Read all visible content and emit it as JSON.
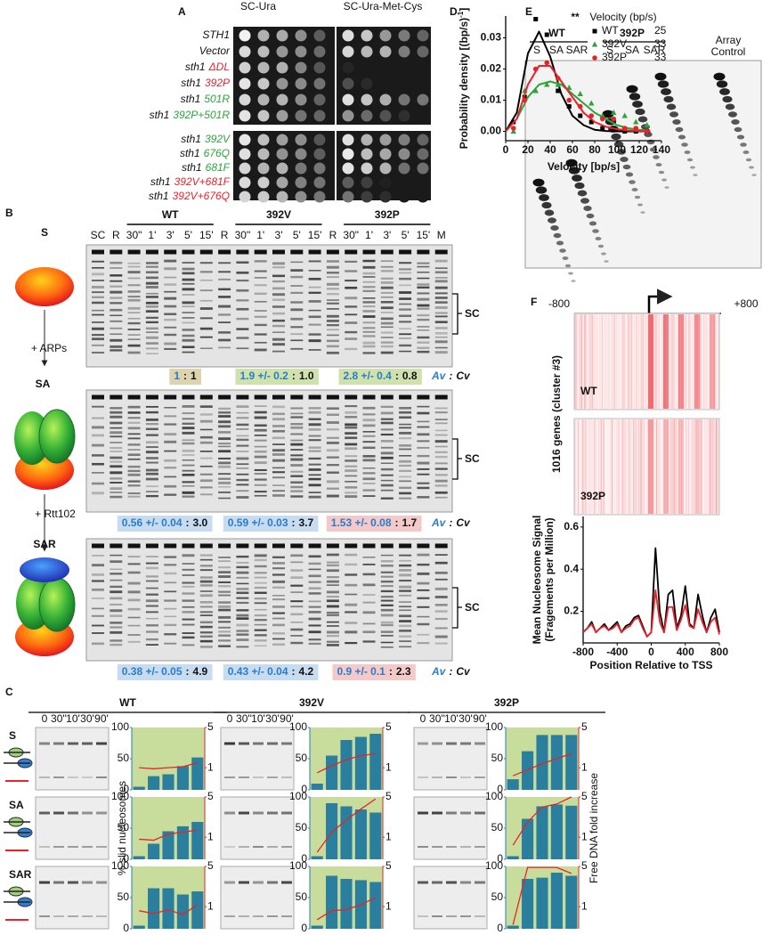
{
  "panel_a": {
    "label": "A",
    "columns": [
      "SC-Ura",
      "SC-Ura-Met-Cys"
    ],
    "rows": [
      {
        "gene": "STH1"
      },
      {
        "gene": "Vector"
      },
      {
        "gene": "sth1",
        "allele": "ΔDL",
        "color": "#e8212b"
      },
      {
        "gene": "sth1",
        "allele": "392P",
        "color": "#e8212b"
      },
      {
        "gene": "sth1",
        "allele": "501R",
        "color": "#2aa538"
      },
      {
        "gene": "sth1",
        "allele": "392P+501R",
        "color": "#2aa538"
      },
      {
        "gene": "sth1",
        "allele": "392V",
        "color": "#2aa538"
      },
      {
        "gene": "sth1",
        "allele": "676Q",
        "color": "#2aa538"
      },
      {
        "gene": "sth1",
        "allele": "681F",
        "color": "#2aa538"
      },
      {
        "gene": "sth1",
        "allele": "392V+681F",
        "color": "#e8212b"
      },
      {
        "gene": "sth1",
        "allele": "392V+676Q",
        "color": "#e8212b"
      }
    ]
  },
  "panel_b": {
    "label": "B",
    "groups": [
      {
        "name": "WT",
        "color": "#000000"
      },
      {
        "name": "392V",
        "color": "#2aa538"
      },
      {
        "name": "392P",
        "color": "#e8212b"
      }
    ],
    "lanes": [
      "SC",
      "R",
      "30\"",
      "1'",
      "3'",
      "5'",
      "15'",
      "R",
      "30\"",
      "1'",
      "3'",
      "5'",
      "15'",
      "R",
      "30\"",
      "1'",
      "3'",
      "5'",
      "15'",
      "M"
    ],
    "stages": [
      "S",
      "SA",
      "SAR"
    ],
    "steps": [
      "+ ARPs",
      "+ Rtt102"
    ],
    "bracket": "SC",
    "ratio_label": {
      "av": "Av",
      "sep": ":",
      "cv": "Cv"
    },
    "ratios": [
      [
        {
          "av": "1",
          "cv": "1"
        },
        {
          "av": "1.9 +/- 0.2",
          "cv": "1.0"
        },
        {
          "av": "2.8 +/- 0.4",
          "cv": "0.8"
        }
      ],
      [
        {
          "av": "0.56 +/- 0.04",
          "cv": "3.0"
        },
        {
          "av": "0.59 +/- 0.03",
          "cv": "3.7"
        },
        {
          "av": "1.53 +/- 0.08",
          "cv": "1.7"
        }
      ],
      [
        {
          "av": "0.38 +/- 0.05",
          "cv": "4.9"
        },
        {
          "av": "0.43 +/- 0.04",
          "cv": "4.2"
        },
        {
          "av": "0.9 +/- 0.1",
          "cv": "2.3"
        }
      ]
    ]
  },
  "panel_c": {
    "label": "C",
    "groups": [
      {
        "name": "WT",
        "color": "#000000"
      },
      {
        "name": "392V",
        "color": "#2aa538"
      },
      {
        "name": "392P",
        "color": "#e8212b"
      }
    ],
    "lanes": [
      "0",
      "30''",
      "10'",
      "30'",
      "90'"
    ],
    "rows": [
      "S",
      "SA",
      "SAR"
    ],
    "ylabel": "% slid nucleosomes",
    "y2label": "Free DNA fold increase"
  },
  "panel_d": {
    "label": "D"
  },
  "panel_e": {
    "label": "E",
    "significance": "**",
    "groups": [
      {
        "name": "WT",
        "color": "#000000"
      },
      {
        "name": "392P",
        "color": "#e8212b"
      }
    ],
    "lanes": [
      "S",
      "SA",
      "SAR"
    ],
    "control": [
      "Array",
      "Control"
    ]
  },
  "panel_f": {
    "label": "F",
    "left": "-800",
    "right": "+800",
    "genes": "1016 genes (cluster #3)",
    "heatmaps": [
      "WT",
      "392P"
    ]
  },
  "chart_data": [
    {
      "type": "scatter",
      "x": [
        7,
        17,
        27,
        37,
        47,
        57,
        67,
        77,
        87,
        97,
        107,
        117,
        127
      ],
      "fit_x": [
        0,
        10,
        20,
        30,
        40,
        50,
        60,
        70,
        80,
        90,
        100,
        110,
        120,
        130
      ],
      "xlim": [
        0,
        140
      ],
      "ylim": [
        -0.003,
        0.037
      ],
      "xticks": [
        0,
        20,
        40,
        60,
        80,
        100,
        120,
        140
      ],
      "yticks": [
        {
          "value": 0,
          "label": "0.00"
        },
        0.01,
        0.02,
        0.03
      ],
      "xlabel": "Velocity [bp/s]",
      "ylabel": {
        "text": "Probability density [(bp/s)",
        "sup": "-1",
        "end": "]"
      },
      "legend_title": "Velocity (bp/s)",
      "legend": "upper right",
      "series": [
        {
          "name": "WT",
          "mean": 25,
          "color": "#000000",
          "marker": "square",
          "values": [
            0.003,
            0.011,
            0.036,
            0.031,
            0.013,
            0.008,
            0.005,
            0.003,
            0.001,
            0.001,
            0.0,
            0.0,
            0.0
          ],
          "fit": [
            0,
            0.006,
            0.025,
            0.032,
            0.024,
            0.012,
            0.005,
            0.002,
            0.0005,
            0.0001,
            0,
            0,
            0,
            0
          ]
        },
        {
          "name": "392V",
          "mean": 33,
          "color": "#2aa538",
          "marker": "triangle",
          "values": [
            0.0,
            0.013,
            0.013,
            0.015,
            0.015,
            0.014,
            0.012,
            0.009,
            0.005,
            0.006,
            0.005,
            0.003,
            0.002
          ],
          "fit": [
            0,
            0.004,
            0.011,
            0.015,
            0.016,
            0.015,
            0.012,
            0.009,
            0.006,
            0.004,
            0.002,
            0.001,
            0.0005,
            0.0002
          ]
        },
        {
          "name": "392P",
          "mean": 33,
          "color": "#e8212b",
          "marker": "circle",
          "values": [
            0.001,
            0.01,
            0.02,
            0.022,
            0.017,
            0.01,
            0.008,
            0.005,
            0.004,
            0.004,
            0.001,
            0.001,
            0.0
          ],
          "fit": [
            0,
            0.004,
            0.015,
            0.021,
            0.021,
            0.016,
            0.011,
            0.006,
            0.003,
            0.0015,
            0.0007,
            0.0003,
            0.0001,
            0
          ]
        }
      ]
    },
    {
      "type": "line",
      "x": [
        -800,
        -750,
        -700,
        -650,
        -600,
        -550,
        -500,
        -450,
        -400,
        -350,
        -300,
        -250,
        -200,
        -150,
        -100,
        -50,
        0,
        50,
        100,
        150,
        200,
        250,
        300,
        350,
        400,
        450,
        500,
        550,
        600,
        650,
        700,
        750,
        800
      ],
      "xlim": [
        -800,
        800
      ],
      "ylim": [
        0.05,
        0.65
      ],
      "xticks": [
        -800,
        -400,
        0,
        400,
        800
      ],
      "yticks": [
        0.2,
        0.4,
        0.6
      ],
      "xlabel": "Position Relative to TSS",
      "ylabel": [
        "Mean Nucleosome Signal",
        "(Fragements per Million)"
      ],
      "series": [
        {
          "color": "#000000",
          "values": [
            0.1,
            0.12,
            0.15,
            0.1,
            0.12,
            0.14,
            0.11,
            0.13,
            0.15,
            0.1,
            0.13,
            0.14,
            0.17,
            0.18,
            0.13,
            0.08,
            0.1,
            0.5,
            0.2,
            0.1,
            0.28,
            0.3,
            0.12,
            0.18,
            0.32,
            0.14,
            0.12,
            0.28,
            0.18,
            0.1,
            0.17,
            0.21,
            0.1
          ]
        },
        {
          "color": "#e8212b",
          "values": [
            0.1,
            0.12,
            0.14,
            0.1,
            0.12,
            0.13,
            0.11,
            0.12,
            0.14,
            0.1,
            0.12,
            0.13,
            0.16,
            0.17,
            0.12,
            0.08,
            0.1,
            0.3,
            0.15,
            0.1,
            0.22,
            0.22,
            0.11,
            0.16,
            0.23,
            0.13,
            0.12,
            0.21,
            0.15,
            0.1,
            0.15,
            0.17,
            0.09
          ]
        }
      ]
    },
    {
      "type": "bar",
      "ylim": [
        0,
        100
      ],
      "yticks": [
        0,
        50,
        100
      ],
      "y2lim": [
        -1.2,
        5
      ],
      "y2ticks": [
        1,
        5
      ],
      "series": [
        {
          "color": "#2a7f9e",
          "values": [
            5,
            22,
            25,
            38,
            52
          ]
        },
        {
          "color": "#e8212b",
          "axis": "y2",
          "values": [
            1,
            0.9,
            1,
            1.1,
            1.5
          ]
        }
      ]
    },
    {
      "type": "bar",
      "ylim": [
        0,
        100
      ],
      "yticks": [
        0,
        50,
        100
      ],
      "y2lim": [
        -1.2,
        5
      ],
      "y2ticks": [
        1,
        5
      ],
      "series": [
        {
          "color": "#2a7f9e",
          "values": [
            10,
            55,
            80,
            85,
            90
          ]
        },
        {
          "color": "#e8212b",
          "axis": "y2",
          "values": [
            0.5,
            1.2,
            1.8,
            2.2,
            2.4
          ]
        }
      ]
    },
    {
      "type": "bar",
      "ylim": [
        0,
        100
      ],
      "yticks": [
        0,
        50,
        100
      ],
      "y2lim": [
        -1.2,
        5
      ],
      "y2ticks": [
        1,
        5
      ],
      "series": [
        {
          "color": "#2a7f9e",
          "values": [
            17,
            62,
            88,
            88,
            88
          ]
        },
        {
          "color": "#e8212b",
          "axis": "y2",
          "values": [
            0.2,
            0.8,
            1.4,
            1.9,
            2.4
          ]
        }
      ]
    },
    {
      "type": "bar",
      "ylim": [
        0,
        100
      ],
      "yticks": [
        0,
        50,
        100
      ],
      "y2lim": [
        -1.2,
        5
      ],
      "y2ticks": [
        1,
        5
      ],
      "series": [
        {
          "color": "#2a7f9e",
          "values": [
            5,
            25,
            45,
            53,
            60
          ]
        },
        {
          "color": "#e8212b",
          "axis": "y2",
          "values": [
            0.8,
            0.7,
            1.3,
            1.5,
            1.7
          ]
        }
      ]
    },
    {
      "type": "bar",
      "ylim": [
        0,
        100
      ],
      "yticks": [
        0,
        50,
        100
      ],
      "y2lim": [
        -1.2,
        5
      ],
      "y2ticks": [
        1,
        5
      ],
      "series": [
        {
          "color": "#2a7f9e",
          "values": [
            5,
            90,
            85,
            80,
            75
          ]
        },
        {
          "color": "#e8212b",
          "axis": "y2",
          "values": [
            -0.5,
            1.5,
            2.7,
            3.8,
            4.8
          ]
        }
      ]
    },
    {
      "type": "bar",
      "ylim": [
        0,
        100
      ],
      "yticks": [
        0,
        50,
        100
      ],
      "y2lim": [
        -1.2,
        5
      ],
      "y2ticks": [
        1,
        5
      ],
      "series": [
        {
          "color": "#2a7f9e",
          "values": [
            5,
            65,
            85,
            88,
            86
          ]
        },
        {
          "color": "#e8212b",
          "axis": "y2",
          "values": [
            0.2,
            2.5,
            4.0,
            4.3,
            5
          ]
        }
      ]
    },
    {
      "type": "bar",
      "ylim": [
        0,
        100
      ],
      "yticks": [
        0,
        50,
        100
      ],
      "y2lim": [
        -1.2,
        5
      ],
      "y2ticks": [
        1,
        5
      ],
      "series": [
        {
          "color": "#2a7f9e",
          "values": [
            5,
            65,
            65,
            55,
            60
          ]
        },
        {
          "color": "#e8212b",
          "axis": "y2",
          "values": [
            0.6,
            0.3,
            0.7,
            0.2,
            1.2
          ]
        }
      ]
    },
    {
      "type": "bar",
      "ylim": [
        0,
        100
      ],
      "yticks": [
        0,
        50,
        100
      ],
      "y2lim": [
        -1.2,
        5
      ],
      "y2ticks": [
        1,
        5
      ],
      "series": [
        {
          "color": "#2a7f9e",
          "values": [
            5,
            85,
            80,
            78,
            75
          ]
        },
        {
          "color": "#e8212b",
          "axis": "y2",
          "values": [
            -0.3,
            0.6,
            0.7,
            1.2,
            1.9
          ]
        }
      ]
    },
    {
      "type": "bar",
      "ylim": [
        0,
        100
      ],
      "yticks": [
        0,
        50,
        100
      ],
      "y2lim": [
        -1.2,
        5
      ],
      "y2ticks": [
        1,
        5
      ],
      "series": [
        {
          "color": "#2a7f9e",
          "values": [
            5,
            80,
            82,
            90,
            85
          ]
        },
        {
          "color": "#e8212b",
          "axis": "y2",
          "values": [
            -0.8,
            4.9,
            4.9,
            4.9,
            4.3
          ]
        }
      ]
    }
  ]
}
